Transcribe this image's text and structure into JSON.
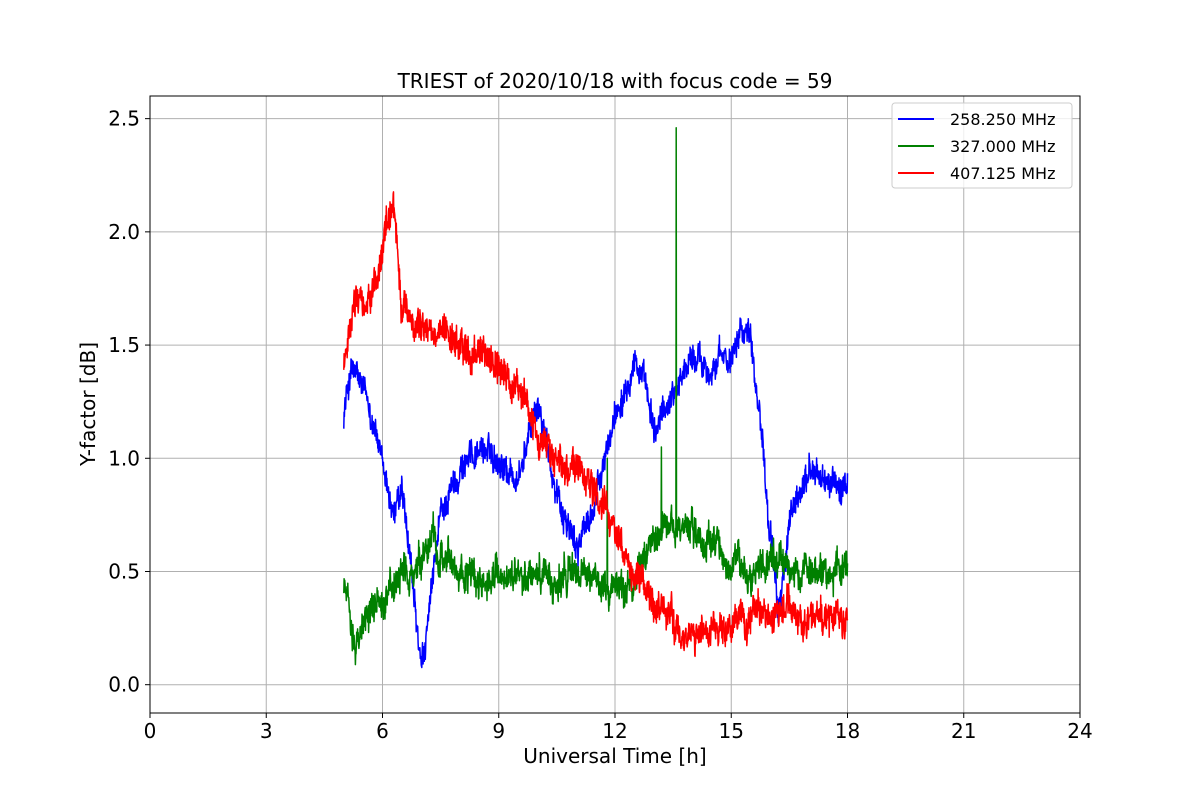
{
  "chart_data": {
    "type": "line",
    "title": "TRIEST of 2020/10/18 with focus code = 59",
    "xlabel": "Universal Time [h]",
    "ylabel": "Y-factor [dB]",
    "xlim": [
      0,
      24
    ],
    "ylim": [
      -0.125,
      2.6
    ],
    "xticks": [
      0,
      3,
      6,
      9,
      12,
      15,
      18,
      21,
      24
    ],
    "xtick_labels": [
      "0",
      "3",
      "6",
      "9",
      "12",
      "15",
      "18",
      "21",
      "24"
    ],
    "yticks": [
      0.0,
      0.5,
      1.0,
      1.5,
      2.0,
      2.5
    ],
    "ytick_labels": [
      "0.0",
      "0.5",
      "1.0",
      "1.5",
      "2.0",
      "2.5"
    ],
    "grid": true,
    "legend_position": "top-right",
    "series": [
      {
        "name": "258.250 MHz",
        "color": "#0000ff",
        "noise_amplitude": 0.06,
        "x": [
          5.0,
          5.2,
          5.5,
          5.8,
          6.0,
          6.3,
          6.5,
          6.8,
          7.0,
          7.2,
          7.5,
          8.0,
          8.5,
          9.0,
          9.5,
          10.0,
          10.3,
          10.6,
          11.0,
          11.5,
          12.0,
          12.3,
          12.5,
          12.8,
          13.0,
          13.5,
          14.0,
          14.5,
          15.0,
          15.2,
          15.5,
          15.8,
          16.0,
          16.2,
          16.5,
          17.0,
          17.5,
          18.0
        ],
        "y": [
          1.2,
          1.4,
          1.3,
          1.15,
          0.95,
          0.75,
          0.85,
          0.4,
          0.05,
          0.3,
          0.75,
          0.95,
          1.05,
          1.0,
          0.9,
          1.25,
          1.0,
          0.8,
          0.6,
          0.8,
          1.2,
          1.35,
          1.45,
          1.3,
          1.1,
          1.3,
          1.45,
          1.4,
          1.45,
          1.6,
          1.55,
          1.1,
          0.7,
          0.3,
          0.7,
          0.95,
          0.9,
          0.85
        ]
      },
      {
        "name": "327.000 MHz",
        "color": "#008000",
        "noise_amplitude": 0.07,
        "x": [
          5.0,
          5.3,
          5.6,
          6.0,
          6.5,
          7.0,
          7.3,
          7.6,
          8.0,
          8.5,
          9.0,
          9.5,
          10.0,
          10.5,
          11.0,
          11.5,
          12.0,
          12.5,
          13.0,
          13.5,
          14.0,
          14.5,
          15.0,
          15.5,
          16.0,
          16.5,
          17.0,
          17.5,
          18.0
        ],
        "y": [
          0.45,
          0.2,
          0.3,
          0.4,
          0.45,
          0.5,
          0.65,
          0.55,
          0.5,
          0.45,
          0.5,
          0.45,
          0.5,
          0.45,
          0.5,
          0.45,
          0.45,
          0.45,
          0.7,
          0.7,
          0.7,
          0.6,
          0.55,
          0.5,
          0.55,
          0.5,
          0.5,
          0.5,
          0.5
        ],
        "spikes": [
          [
            13.58,
            2.46
          ],
          [
            13.2,
            1.05
          ],
          [
            11.8,
            1.0
          ]
        ]
      },
      {
        "name": "407.125 MHz",
        "color": "#ff0000",
        "noise_amplitude": 0.07,
        "x": [
          5.0,
          5.3,
          5.6,
          5.9,
          6.1,
          6.3,
          6.5,
          7.0,
          7.5,
          8.0,
          8.5,
          9.0,
          9.5,
          10.0,
          10.5,
          11.0,
          11.5,
          12.0,
          12.5,
          13.0,
          13.5,
          14.0,
          14.5,
          15.0,
          15.5,
          16.0,
          16.5,
          17.0,
          17.5,
          18.0
        ],
        "y": [
          1.4,
          1.7,
          1.65,
          1.8,
          2.05,
          2.15,
          1.65,
          1.6,
          1.55,
          1.5,
          1.45,
          1.4,
          1.3,
          1.1,
          1.0,
          0.95,
          0.85,
          0.7,
          0.5,
          0.35,
          0.25,
          0.2,
          0.25,
          0.25,
          0.3,
          0.3,
          0.35,
          0.3,
          0.3,
          0.3
        ]
      }
    ]
  }
}
